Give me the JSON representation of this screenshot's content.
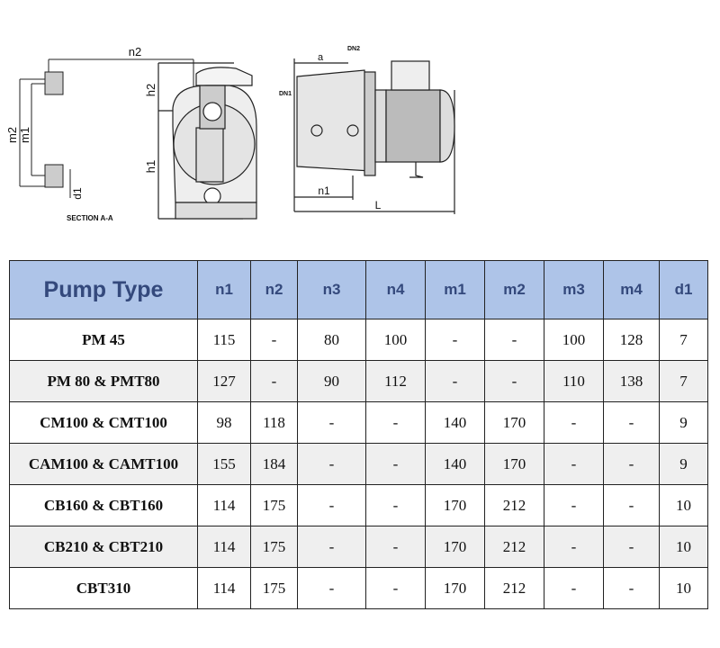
{
  "drawing": {
    "section_labels": {
      "n2": "n2",
      "m2": "m2",
      "m1": "m1",
      "d1": "d1",
      "caption": "SECTION A-A"
    },
    "front_labels": {
      "h2": "h2",
      "h1": "h1"
    },
    "side_labels": {
      "a": "a",
      "dn2": "DN2",
      "dn1": "DN1",
      "n1": "n1",
      "L": "L"
    }
  },
  "table": {
    "headers": [
      "Pump Type",
      "n1",
      "n2",
      "n3",
      "n4",
      "m1",
      "m2",
      "m3",
      "m4",
      "d1"
    ],
    "rows": [
      [
        "PM 45",
        "115",
        "-",
        "80",
        "100",
        "-",
        "-",
        "100",
        "128",
        "7"
      ],
      [
        "PM 80 & PMT80",
        "127",
        "-",
        "90",
        "112",
        "-",
        "-",
        "110",
        "138",
        "7"
      ],
      [
        "CM100 & CMT100",
        "98",
        "118",
        "-",
        "-",
        "140",
        "170",
        "-",
        "-",
        "9"
      ],
      [
        "CAM100 & CAMT100",
        "155",
        "184",
        "-",
        "-",
        "140",
        "170",
        "-",
        "-",
        "9"
      ],
      [
        "CB160 & CBT160",
        "114",
        "175",
        "-",
        "-",
        "170",
        "212",
        "-",
        "-",
        "10"
      ],
      [
        "CB210 & CBT210",
        "114",
        "175",
        "-",
        "-",
        "170",
        "212",
        "-",
        "-",
        "10"
      ],
      [
        "CBT310",
        "114",
        "175",
        "-",
        "-",
        "170",
        "212",
        "-",
        "-",
        "10"
      ]
    ]
  },
  "colors": {
    "header_bg": "#aec4e8",
    "header_text": "#34497c",
    "alt_row": "#efefef"
  }
}
